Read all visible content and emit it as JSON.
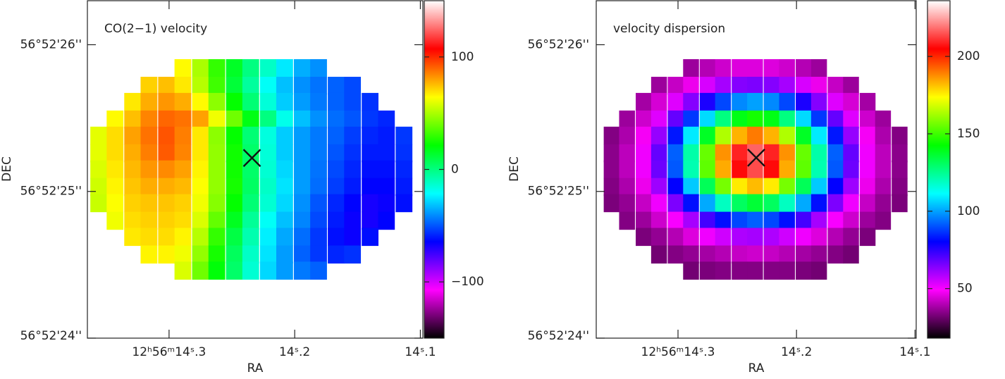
{
  "chart_data": [
    {
      "type": "heatmap",
      "title": "CO(2−1) velocity",
      "xlabel": "RA",
      "ylabel": "DEC",
      "xlim": [
        14.365,
        14.098
      ],
      "ylim": [
        24,
        26.3
      ],
      "xticks": [
        {
          "value": 14.3,
          "label": "12ʰ56ᵐ14ˢ.3"
        },
        {
          "value": 14.2,
          "label": "14ˢ.2"
        },
        {
          "value": 14.1,
          "label": "14ˢ.1"
        }
      ],
      "yticks": [
        {
          "value": 24,
          "label": "56°52'24''"
        },
        {
          "value": 25,
          "label": "56°52'25''"
        },
        {
          "value": 26,
          "label": "56°52'26''"
        }
      ],
      "clim": [
        -150,
        150
      ],
      "cticks": [
        {
          "value": -100,
          "label": "−100"
        },
        0,
        100
      ],
      "colormap": [
        "#000000",
        "#ff00ff",
        "#0000ff",
        "#00ffff",
        "#00ff00",
        "#ffff00",
        "#ff0000",
        "#ffffff"
      ],
      "marker": {
        "x": 14.234,
        "y": 25.228
      },
      "map": {
        "x": [
          14.356,
          14.343,
          14.329,
          14.316,
          14.302,
          14.289,
          14.275,
          14.262,
          14.248,
          14.235,
          14.221,
          14.208,
          14.194,
          14.181,
          14.167,
          14.154,
          14.14,
          14.127,
          14.113
        ],
        "y": [
          25.84,
          25.72,
          25.61,
          25.49,
          25.38,
          25.26,
          25.15,
          25.03,
          24.92,
          24.8,
          24.69,
          24.57,
          24.46
        ],
        "values": [
          [
            null,
            null,
            null,
            null,
            null,
            65,
            50,
            30,
            15,
            0,
            -12,
            -25,
            -35,
            -40,
            null,
            null,
            null,
            null,
            null
          ],
          [
            null,
            null,
            null,
            72,
            75,
            68,
            52,
            32,
            12,
            -5,
            -20,
            -32,
            -40,
            -45,
            -48,
            -52,
            null,
            null,
            null
          ],
          [
            null,
            null,
            68,
            78,
            82,
            78,
            65,
            45,
            22,
            2,
            -15,
            -30,
            -38,
            -44,
            -48,
            -52,
            -56,
            null,
            null
          ],
          [
            null,
            65,
            75,
            85,
            90,
            88,
            80,
            62,
            40,
            18,
            0,
            -18,
            -32,
            -40,
            -46,
            -50,
            -55,
            -58,
            null
          ],
          [
            60,
            70,
            80,
            88,
            93,
            86,
            68,
            45,
            22,
            2,
            -16,
            -30,
            -38,
            -44,
            -48,
            -54,
            -58,
            -60,
            -55
          ],
          [
            60,
            70,
            78,
            86,
            92,
            85,
            68,
            46,
            24,
            4,
            -15,
            -30,
            -38,
            -44,
            -50,
            -56,
            -60,
            -60,
            -56
          ],
          [
            58,
            68,
            76,
            82,
            84,
            80,
            66,
            46,
            24,
            4,
            -14,
            -28,
            -38,
            -45,
            -52,
            -58,
            -62,
            -62,
            -58
          ],
          [
            56,
            66,
            74,
            78,
            78,
            76,
            64,
            46,
            25,
            5,
            -12,
            -26,
            -38,
            -46,
            -54,
            -60,
            -64,
            -64,
            -60
          ],
          [
            55,
            64,
            72,
            74,
            74,
            72,
            62,
            44,
            22,
            2,
            -14,
            -28,
            -40,
            -50,
            -58,
            -64,
            -68,
            -66,
            -62
          ],
          [
            null,
            62,
            70,
            72,
            72,
            70,
            58,
            38,
            16,
            -4,
            -20,
            -32,
            -42,
            -52,
            -60,
            -66,
            -68,
            -64,
            null
          ],
          [
            null,
            null,
            68,
            70,
            70,
            66,
            52,
            30,
            10,
            -8,
            -24,
            -36,
            -46,
            -55,
            -62,
            -66,
            -62,
            null,
            null
          ],
          [
            null,
            null,
            null,
            66,
            66,
            62,
            46,
            25,
            6,
            -12,
            -26,
            -38,
            -48,
            -55,
            -58,
            -56,
            null,
            null,
            null
          ],
          [
            null,
            null,
            null,
            null,
            null,
            58,
            40,
            20,
            4,
            -14,
            -28,
            -38,
            -44,
            -48,
            null,
            null,
            null,
            null,
            null
          ]
        ]
      }
    },
    {
      "type": "heatmap",
      "title": "velocity dispersion",
      "xlabel": "RA",
      "ylabel": "DEC",
      "xlim": [
        14.369,
        14.099
      ],
      "ylim": [
        24,
        26.3
      ],
      "xticks": [
        {
          "value": 14.3,
          "label": "12ʰ56ᵐ14ˢ.3"
        },
        {
          "value": 14.2,
          "label": "14ˢ.2"
        },
        {
          "value": 14.1,
          "label": "14ˢ.1"
        }
      ],
      "yticks": [
        {
          "value": 24,
          "label": "56°52'24''"
        },
        {
          "value": 25,
          "label": "56°52'25''"
        },
        {
          "value": 26,
          "label": "56°52'26''"
        }
      ],
      "clim": [
        18,
        236
      ],
      "cticks": [
        50,
        100,
        150,
        200
      ],
      "colormap": [
        "#000000",
        "#ff00ff",
        "#0000ff",
        "#00ffff",
        "#00ff00",
        "#ffff00",
        "#ff0000",
        "#ffffff"
      ],
      "marker": {
        "x": 14.234,
        "y": 25.23
      },
      "map": {
        "x": [
          14.356,
          14.343,
          14.329,
          14.316,
          14.302,
          14.289,
          14.275,
          14.262,
          14.248,
          14.235,
          14.221,
          14.208,
          14.194,
          14.181,
          14.167,
          14.154,
          14.14,
          14.127,
          14.113
        ],
        "y": [
          25.84,
          25.72,
          25.61,
          25.49,
          25.38,
          25.26,
          25.15,
          25.03,
          24.92,
          24.8,
          24.69,
          24.57,
          24.46
        ],
        "values": [
          [
            null,
            null,
            null,
            null,
            null,
            37,
            40,
            43,
            45,
            45,
            45,
            43,
            40,
            37,
            null,
            null,
            null,
            null,
            null
          ],
          [
            null,
            null,
            null,
            37,
            42,
            47,
            54,
            60,
            64,
            65,
            64,
            60,
            54,
            47,
            42,
            37,
            null,
            null,
            null
          ],
          [
            null,
            null,
            38,
            44,
            53,
            64,
            77,
            89,
            97,
            100,
            97,
            89,
            77,
            64,
            53,
            44,
            38,
            null,
            null
          ],
          [
            null,
            37,
            43,
            53,
            68,
            87,
            107,
            127,
            140,
            145,
            140,
            127,
            107,
            87,
            68,
            53,
            43,
            37,
            null
          ],
          [
            34,
            39,
            48,
            62,
            83,
            109,
            138,
            164,
            183,
            190,
            183,
            164,
            138,
            109,
            83,
            62,
            48,
            39,
            34
          ],
          [
            35,
            41,
            51,
            68,
            92,
            122,
            155,
            187,
            209,
            217,
            209,
            187,
            155,
            122,
            92,
            68,
            51,
            41,
            35
          ],
          [
            35,
            41,
            51,
            67,
            91,
            121,
            154,
            184,
            206,
            214,
            206,
            184,
            154,
            121,
            91,
            67,
            51,
            41,
            35
          ],
          [
            34,
            39,
            47,
            61,
            80,
            105,
            132,
            157,
            176,
            182,
            176,
            157,
            132,
            105,
            80,
            61,
            47,
            39,
            34
          ],
          [
            33,
            36,
            42,
            51,
            65,
            82,
            101,
            119,
            131,
            136,
            131,
            119,
            101,
            82,
            65,
            51,
            42,
            36,
            33
          ],
          [
            null,
            34,
            37,
            43,
            50,
            60,
            72,
            82,
            89,
            92,
            89,
            82,
            72,
            60,
            50,
            43,
            37,
            34,
            null
          ],
          [
            null,
            null,
            33,
            36,
            40,
            45,
            51,
            55,
            59,
            60,
            59,
            55,
            51,
            45,
            40,
            36,
            33,
            null,
            null
          ],
          [
            null,
            null,
            null,
            32,
            34,
            36,
            38,
            40,
            42,
            43,
            42,
            40,
            38,
            36,
            34,
            32,
            null,
            null,
            null
          ],
          [
            null,
            null,
            null,
            null,
            null,
            32,
            33,
            34,
            34,
            34,
            34,
            34,
            33,
            32,
            null,
            null,
            null,
            null,
            null
          ]
        ]
      }
    }
  ]
}
